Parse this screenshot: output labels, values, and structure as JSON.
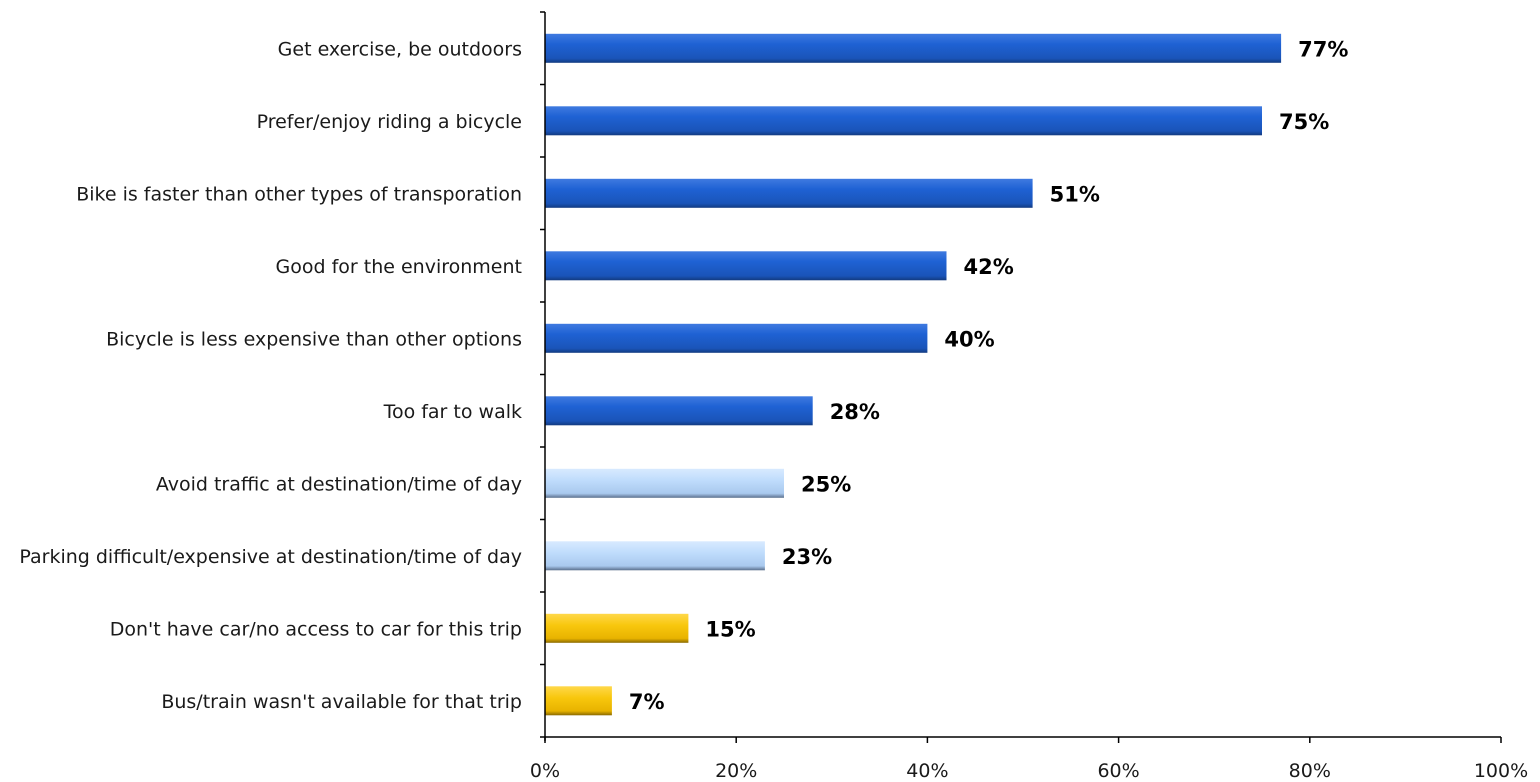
{
  "chart_data": {
    "type": "bar",
    "orientation": "horizontal",
    "title": "",
    "xlabel": "",
    "ylabel": "",
    "xlim": [
      0,
      100
    ],
    "x_ticks": [
      0,
      20,
      40,
      60,
      80,
      100
    ],
    "x_tick_labels": [
      "0%",
      "20%",
      "40%",
      "60%",
      "80%",
      "100%"
    ],
    "grid": false,
    "legend": "none",
    "categories": [
      "Get exercise, be outdoors",
      "Prefer/enjoy riding a bicycle",
      "Bike is faster than other types of transporation",
      "Good for the environment",
      "Bicycle is less expensive than other options",
      "Too far to walk",
      "Avoid traffic at destination/time of day",
      "Parking difficult/expensive at destination/time of day",
      "Don't have car/no access to car for this trip",
      "Bus/train wasn't available for that trip"
    ],
    "values": [
      77,
      75,
      51,
      42,
      40,
      28,
      25,
      23,
      15,
      7
    ],
    "value_labels": [
      "77%",
      "75%",
      "51%",
      "42%",
      "40%",
      "28%",
      "25%",
      "23%",
      "15%",
      "7%"
    ],
    "bar_groups": [
      "blue",
      "blue",
      "blue",
      "blue",
      "blue",
      "blue",
      "light-blue",
      "light-blue",
      "gold",
      "gold"
    ],
    "colors": {
      "blue": "#1d5fd0",
      "light-blue": "#bcd9fb",
      "gold": "#f7c50f"
    }
  }
}
